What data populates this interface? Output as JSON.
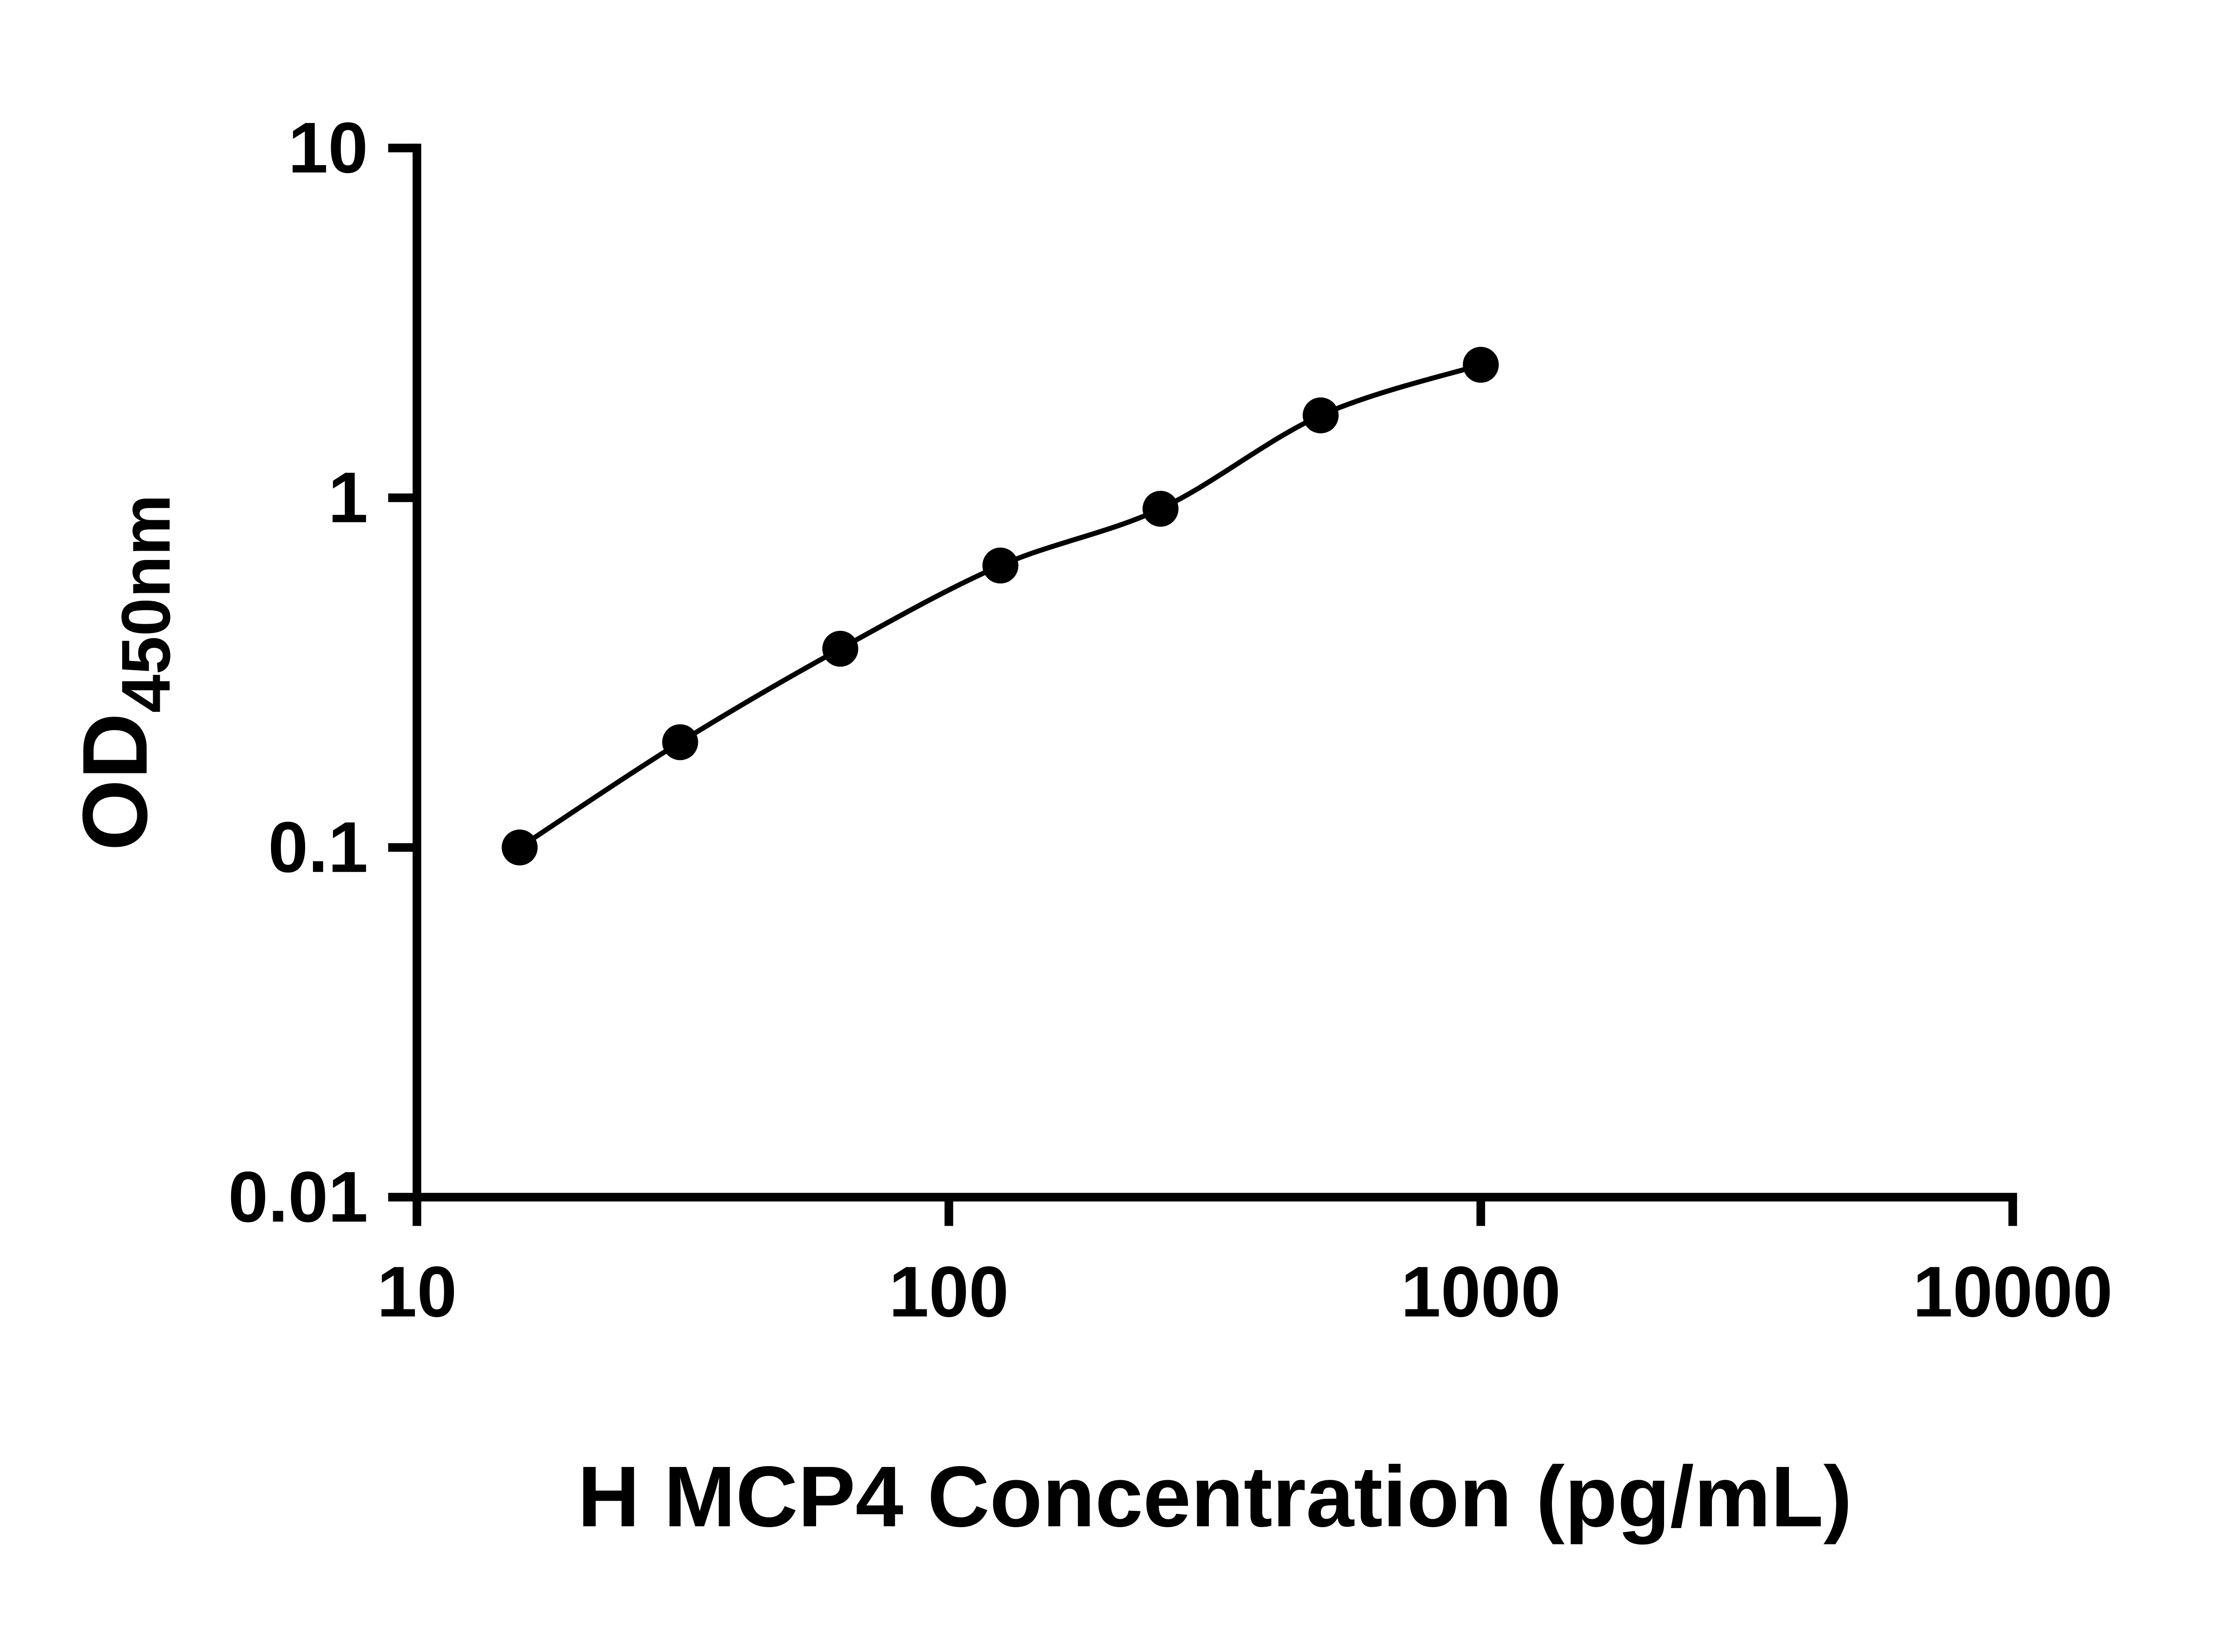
{
  "figure": {
    "background": "#ffffff",
    "axis_color": "#000000"
  },
  "chart_data": {
    "type": "scatter",
    "subtype": "elisa-standard-curve",
    "x": [
      15.6,
      31.25,
      62.5,
      125,
      250,
      500,
      1000
    ],
    "y": [
      0.1,
      0.2,
      0.37,
      0.64,
      0.93,
      1.72,
      2.4
    ],
    "x_scale": "log10",
    "y_scale": "log10",
    "xlim": [
      10,
      10000
    ],
    "ylim": [
      0.01,
      10
    ],
    "x_ticks": [
      10,
      100,
      1000,
      10000
    ],
    "x_tick_labels": [
      "10",
      "100",
      "1000",
      "10000"
    ],
    "y_ticks": [
      0.01,
      0.1,
      1,
      10
    ],
    "y_tick_labels": [
      "0.01",
      "0.1",
      "1",
      "10"
    ],
    "xlabel": "H MCP4 Concentration (pg/mL)",
    "ylabel_main": "OD",
    "ylabel_sub": "450nm",
    "marker": "filled-circle",
    "marker_color": "#000000",
    "line_color": "#000000",
    "curve": "smooth",
    "grid": false,
    "legend": "none"
  }
}
